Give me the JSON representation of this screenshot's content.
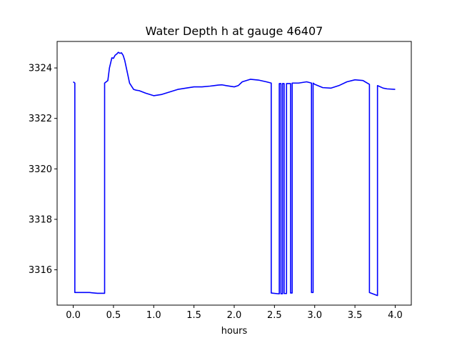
{
  "chart_data": {
    "type": "line",
    "title": "Water Depth h at gauge 46407",
    "xlabel": "hours",
    "ylabel": "",
    "xlim": [
      -0.2,
      4.2
    ],
    "ylim": [
      3314.6,
      3325.05
    ],
    "xticks": [
      0.0,
      0.5,
      1.0,
      1.5,
      2.0,
      2.5,
      3.0,
      3.5,
      4.0
    ],
    "xtick_labels": [
      "0.0",
      "0.5",
      "1.0",
      "1.5",
      "2.0",
      "2.5",
      "3.0",
      "3.5",
      "4.0"
    ],
    "yticks": [
      3316,
      3318,
      3320,
      3322,
      3324
    ],
    "ytick_labels": [
      "3316",
      "3318",
      "3320",
      "3322",
      "3324"
    ],
    "grid": false,
    "series": [
      {
        "color": "#0000ff",
        "x": [
          0.0,
          0.02,
          0.02,
          0.1,
          0.2,
          0.3,
          0.38,
          0.39,
          0.39,
          0.43,
          0.45,
          0.48,
          0.5,
          0.52,
          0.54,
          0.56,
          0.58,
          0.6,
          0.62,
          0.64,
          0.66,
          0.7,
          0.75,
          0.78,
          0.82,
          0.9,
          1.0,
          1.1,
          1.2,
          1.3,
          1.4,
          1.5,
          1.6,
          1.7,
          1.75,
          1.8,
          1.85,
          1.9,
          2.0,
          2.05,
          2.1,
          2.2,
          2.3,
          2.4,
          2.46,
          2.46,
          2.55,
          2.56,
          2.56,
          2.58,
          2.58,
          2.6,
          2.6,
          2.62,
          2.62,
          2.65,
          2.65,
          2.7,
          2.7,
          2.72,
          2.72,
          2.75,
          2.8,
          2.9,
          2.96,
          2.96,
          2.98,
          2.98,
          3.0,
          3.1,
          3.2,
          3.3,
          3.4,
          3.5,
          3.6,
          3.68,
          3.68,
          3.78,
          3.78,
          3.85,
          3.9,
          4.0
        ],
        "y": [
          3323.45,
          3323.4,
          3315.1,
          3315.1,
          3315.1,
          3315.07,
          3315.07,
          3315.07,
          3323.4,
          3323.5,
          3324.0,
          3324.4,
          3324.38,
          3324.5,
          3324.55,
          3324.62,
          3324.58,
          3324.6,
          3324.5,
          3324.3,
          3324.0,
          3323.4,
          3323.15,
          3323.12,
          3323.1,
          3323.0,
          3322.9,
          3322.95,
          3323.05,
          3323.15,
          3323.2,
          3323.25,
          3323.25,
          3323.28,
          3323.3,
          3323.32,
          3323.33,
          3323.3,
          3323.25,
          3323.3,
          3323.45,
          3323.55,
          3323.52,
          3323.45,
          3323.4,
          3315.08,
          3315.05,
          3315.05,
          3323.38,
          3323.38,
          3315.05,
          3315.05,
          3323.38,
          3323.38,
          3315.06,
          3315.06,
          3323.38,
          3323.38,
          3315.08,
          3315.08,
          3323.4,
          3323.4,
          3323.4,
          3323.45,
          3323.4,
          3315.1,
          3315.1,
          3323.4,
          3323.35,
          3323.22,
          3323.2,
          3323.3,
          3323.45,
          3323.53,
          3323.5,
          3323.35,
          3315.1,
          3314.98,
          3323.3,
          3323.2,
          3323.17,
          3323.15
        ]
      }
    ]
  }
}
